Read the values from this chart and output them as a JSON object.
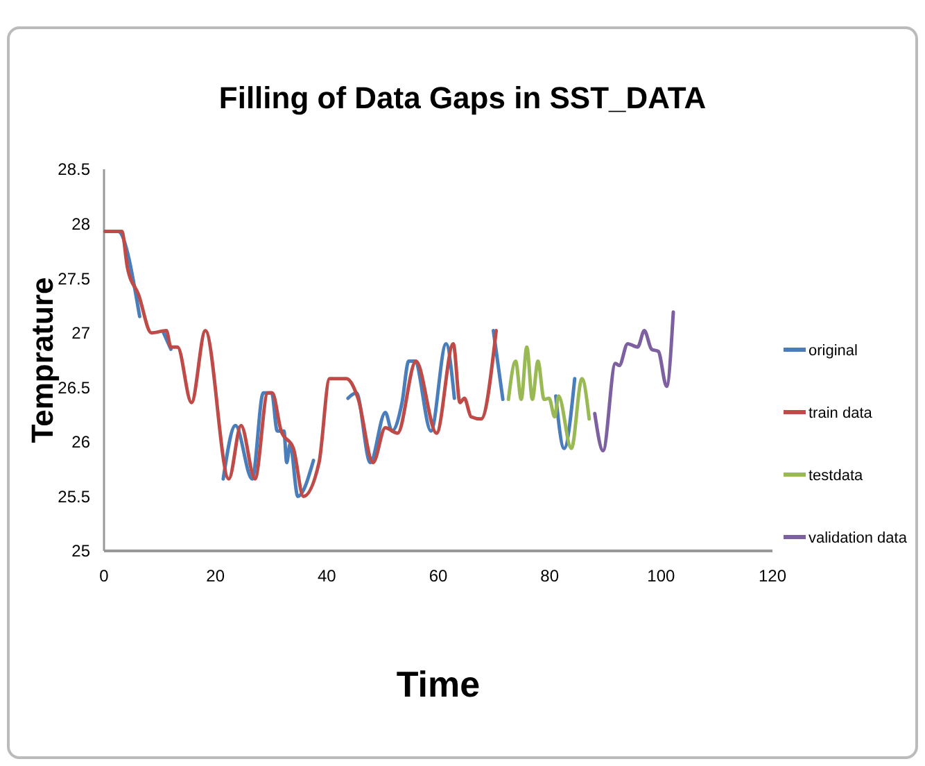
{
  "chart_data": {
    "type": "line",
    "title": "Filling of Data Gaps in SST_DATA",
    "xlabel": "Time",
    "ylabel": "Temprature",
    "xlim": [
      0,
      120
    ],
    "xticks": [
      0,
      20,
      40,
      60,
      80,
      100,
      120
    ],
    "ylim": [
      25,
      28.5
    ],
    "yticks": [
      25,
      25.5,
      26,
      26.5,
      27,
      27.5,
      28,
      28.5
    ],
    "grid": false,
    "legend": "right",
    "line_style": "solid",
    "marker": "none",
    "series": [
      {
        "name": "original",
        "color": "#4a7ebb",
        "x": [
          0.2,
          2.5,
          6.4,
          8,
          10.7,
          12,
          15,
          21.4,
          23.6,
          26.6,
          28.6,
          30.1,
          31.1,
          32.3,
          32.8,
          33.4,
          34.8,
          37.6,
          40,
          43.8,
          45.3,
          47.8,
          50.5,
          51.7,
          53.5,
          54.7,
          55.8,
          58.7,
          61.4,
          62.9,
          66,
          69.9,
          71.6,
          76,
          81.1,
          82.6,
          84.5
        ],
        "values": [
          27.93,
          27.93,
          27.15,
          null,
          27.0,
          26.85,
          null,
          25.66,
          26.15,
          25.66,
          26.45,
          26.45,
          26.1,
          26.1,
          25.81,
          25.98,
          25.5,
          25.83,
          null,
          26.4,
          26.45,
          25.81,
          26.27,
          26.1,
          26.36,
          26.74,
          26.74,
          26.1,
          26.9,
          26.4,
          null,
          27.02,
          26.39,
          null,
          26.42,
          25.94,
          26.58
        ]
      },
      {
        "name": "train data",
        "color": "#be4b48",
        "x": [
          0.2,
          3.2,
          4.2,
          6.2,
          8.5,
          11.2,
          12,
          13.2,
          15.7,
          18.2,
          22.4,
          24.6,
          27.1,
          29.4,
          30.2,
          31.8,
          34,
          35.8,
          38.6,
          40.5,
          43.5,
          45.6,
          48.3,
          50.5,
          52.7,
          56,
          59.7,
          62.7,
          63.9,
          64.7,
          65.9,
          67.7,
          70.4
        ],
        "values": [
          27.93,
          27.93,
          27.6,
          27.35,
          27.0,
          27.02,
          26.87,
          26.87,
          26.36,
          27.02,
          25.66,
          26.15,
          25.66,
          26.45,
          26.45,
          26.1,
          25.94,
          25.5,
          25.81,
          26.58,
          26.58,
          26.4,
          25.81,
          26.13,
          26.08,
          26.74,
          26.08,
          26.9,
          26.36,
          26.4,
          26.23,
          26.21,
          27.02
        ]
      },
      {
        "name": "testdata",
        "color": "#98b954",
        "x": [
          72.6,
          73.9,
          74.9,
          75.9,
          76.9,
          77.9,
          79.0,
          79.9,
          80.9,
          81.6,
          83.9,
          85.8,
          87.1
        ],
        "values": [
          26.39,
          26.74,
          26.39,
          26.87,
          26.39,
          26.74,
          26.39,
          26.4,
          26.23,
          26.42,
          25.94,
          26.58,
          26.21
        ]
      },
      {
        "name": "validation data",
        "color": "#7d60a0",
        "x": [
          88.1,
          89.6,
          91.8,
          92.5,
          94,
          95.8,
          97,
          98.3,
          99.5,
          101,
          102.2
        ],
        "values": [
          26.26,
          25.92,
          26.72,
          26.7,
          26.9,
          26.87,
          27.02,
          26.85,
          26.83,
          26.51,
          27.19
        ]
      }
    ]
  }
}
